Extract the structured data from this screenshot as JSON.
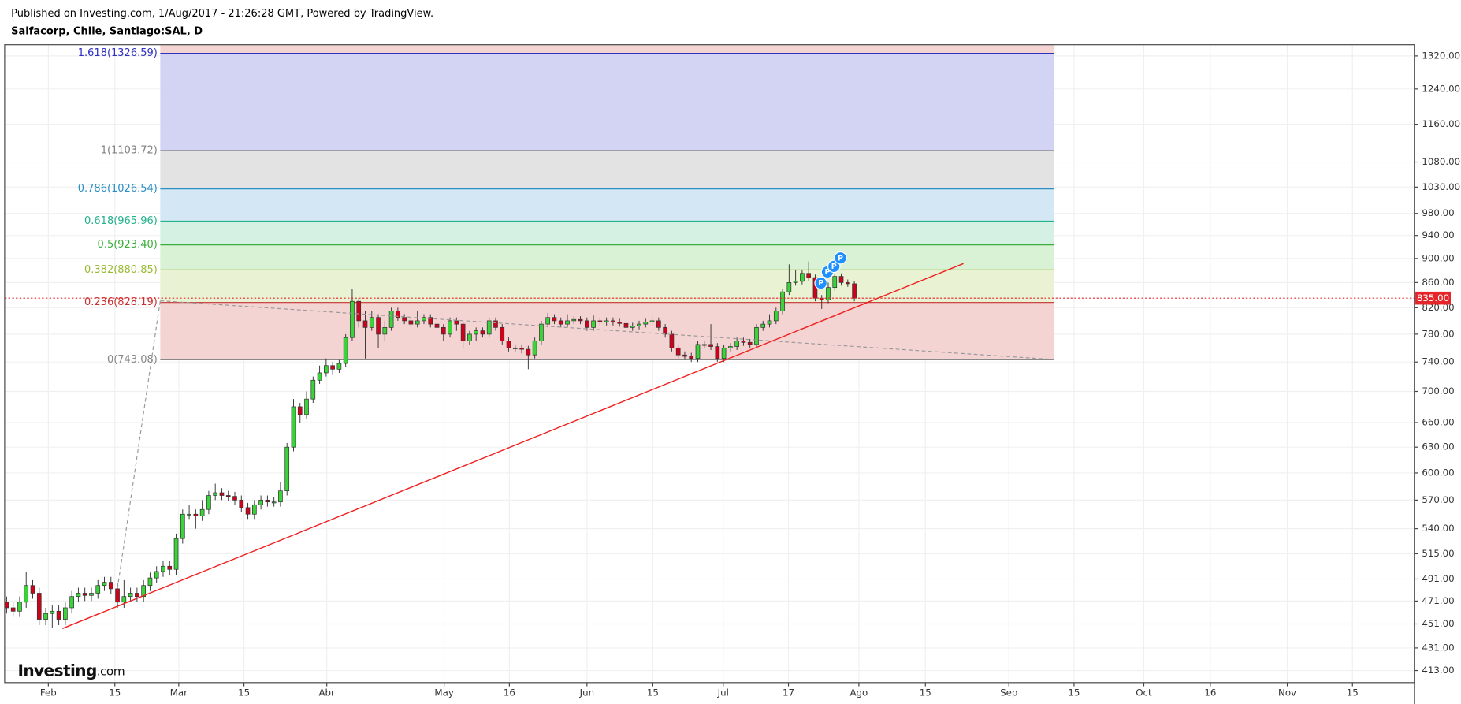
{
  "header": {
    "published": "Published on Investing.com, 1/Aug/2017 - 21:26:28 GMT, Powered by TradingView.",
    "symbol": "Salfacorp, Chile, Santiago:SAL, D"
  },
  "logo": {
    "name": "Investing",
    "suffix": ".com"
  },
  "chart_data": {
    "type": "candlestick",
    "log_scale": true,
    "grid": true,
    "up_color": "#3ad33a",
    "down_color": "#d0021b",
    "open": [
      470,
      465,
      462,
      470,
      485,
      478,
      455,
      460,
      462,
      455,
      465,
      475,
      478,
      476,
      478,
      485,
      488,
      482,
      470,
      475,
      478,
      475,
      485,
      492,
      498,
      503,
      500,
      530,
      555,
      555,
      553,
      560,
      575,
      578,
      575,
      574,
      570,
      562,
      555,
      565,
      570,
      568,
      568,
      580,
      630,
      680,
      670,
      690,
      715,
      725,
      735,
      730,
      738,
      775,
      830,
      800,
      790,
      805,
      780,
      790,
      815,
      805,
      800,
      795,
      800,
      805,
      795,
      790,
      780,
      800,
      795,
      770,
      780,
      785,
      780,
      800,
      790,
      770,
      760,
      760,
      758,
      750,
      770,
      795,
      805,
      800,
      795,
      800,
      802,
      800,
      790,
      800,
      798,
      800,
      798,
      796,
      790,
      792,
      795,
      798,
      800,
      790,
      780,
      760,
      750,
      748,
      745,
      765,
      765,
      762,
      745,
      760,
      762,
      770,
      768,
      765,
      790,
      795,
      800,
      815,
      845,
      860,
      862,
      875,
      868,
      835,
      832,
      852,
      870,
      860,
      858
    ],
    "high": [
      475,
      470,
      475,
      498,
      490,
      483,
      465,
      467,
      467,
      470,
      480,
      483,
      483,
      483,
      490,
      493,
      493,
      487,
      490,
      483,
      483,
      490,
      497,
      503,
      508,
      508,
      535,
      560,
      565,
      560,
      570,
      580,
      588,
      583,
      580,
      579,
      575,
      567,
      570,
      575,
      575,
      573,
      590,
      635,
      690,
      685,
      700,
      720,
      735,
      745,
      740,
      743,
      780,
      850,
      835,
      815,
      815,
      810,
      800,
      820,
      820,
      810,
      805,
      815,
      810,
      810,
      800,
      795,
      805,
      805,
      800,
      785,
      790,
      790,
      805,
      805,
      795,
      775,
      765,
      765,
      763,
      775,
      800,
      812,
      810,
      805,
      810,
      807,
      807,
      805,
      808,
      805,
      805,
      805,
      803,
      801,
      797,
      800,
      803,
      808,
      805,
      795,
      785,
      765,
      755,
      753,
      770,
      770,
      795,
      767,
      765,
      767,
      775,
      775,
      773,
      795,
      800,
      810,
      820,
      850,
      890,
      880,
      880,
      895,
      873,
      840,
      860,
      875,
      875,
      865,
      863
    ],
    "low": [
      460,
      457,
      457,
      465,
      473,
      450,
      450,
      448,
      450,
      450,
      460,
      470,
      471,
      471,
      473,
      480,
      477,
      465,
      465,
      470,
      470,
      470,
      480,
      487,
      493,
      495,
      495,
      525,
      550,
      540,
      548,
      555,
      570,
      570,
      569,
      565,
      557,
      550,
      550,
      560,
      563,
      563,
      563,
      575,
      625,
      660,
      665,
      685,
      710,
      720,
      722,
      725,
      733,
      770,
      790,
      745,
      785,
      760,
      770,
      785,
      800,
      795,
      790,
      790,
      795,
      790,
      770,
      770,
      775,
      785,
      760,
      765,
      770,
      775,
      775,
      785,
      765,
      755,
      755,
      752,
      730,
      745,
      765,
      790,
      795,
      790,
      790,
      795,
      795,
      785,
      785,
      793,
      793,
      793,
      791,
      785,
      785,
      787,
      790,
      793,
      785,
      775,
      755,
      745,
      743,
      740,
      740,
      760,
      757,
      740,
      740,
      755,
      757,
      763,
      760,
      760,
      785,
      790,
      795,
      810,
      840,
      855,
      857,
      863,
      830,
      818,
      827,
      847,
      855,
      853,
      830
    ],
    "close": [
      465,
      462,
      470,
      485,
      478,
      455,
      460,
      462,
      455,
      465,
      475,
      478,
      476,
      478,
      485,
      488,
      482,
      470,
      475,
      478,
      475,
      485,
      492,
      498,
      503,
      500,
      530,
      555,
      555,
      553,
      560,
      575,
      578,
      575,
      574,
      570,
      562,
      555,
      565,
      570,
      568,
      568,
      580,
      630,
      680,
      670,
      690,
      715,
      725,
      735,
      730,
      738,
      775,
      830,
      800,
      790,
      805,
      780,
      790,
      815,
      805,
      800,
      795,
      800,
      805,
      795,
      790,
      780,
      800,
      795,
      770,
      780,
      785,
      780,
      800,
      790,
      770,
      760,
      760,
      758,
      750,
      770,
      795,
      805,
      800,
      795,
      800,
      802,
      800,
      790,
      800,
      798,
      800,
      798,
      796,
      790,
      792,
      795,
      798,
      800,
      790,
      780,
      760,
      750,
      748,
      745,
      765,
      765,
      762,
      745,
      760,
      762,
      770,
      768,
      765,
      790,
      795,
      800,
      815,
      845,
      860,
      862,
      875,
      868,
      835,
      832,
      852,
      870,
      860,
      858,
      835
    ],
    "last_price": {
      "value": 835,
      "label": "835.00",
      "color": "#e5252a"
    },
    "event_markers": [
      "P",
      "P",
      "P",
      "P"
    ],
    "fib_levels": [
      {
        "label": "1.618(1326.59)",
        "value": 1326.59,
        "color": "#3030c0",
        "fill": "#d3d3f3"
      },
      {
        "label": "1(1103.72)",
        "value": 1103.72,
        "color": "#808080",
        "fill": "#e3e3e3"
      },
      {
        "label": "0.786(1026.54)",
        "value": 1026.54,
        "color": "#2c8fc4",
        "fill": "#d3e8f4"
      },
      {
        "label": "0.618(965.96)",
        "value": 965.96,
        "color": "#22b38a",
        "fill": "#d4f1e4"
      },
      {
        "label": "0.5(923.40)",
        "value": 923.4,
        "color": "#3cae3c",
        "fill": "#d9f1d5"
      },
      {
        "label": "0.382(880.85)",
        "value": 880.85,
        "color": "#98bb30",
        "fill": "#e9f2d3"
      },
      {
        "label": "0.236(828.19)",
        "value": 828.19,
        "color": "#c83030",
        "fill": "#f4d3d3"
      },
      {
        "label": "0(743.08)",
        "value": 743.08,
        "color": "#888888",
        "fill": "#f4d3d3"
      }
    ],
    "ylim": [
      403.7,
      1348.2
    ],
    "yticks": [
      {
        "value": 1320,
        "label": "1320.00"
      },
      {
        "value": 1240,
        "label": "1240.00"
      },
      {
        "value": 1160,
        "label": "1160.00"
      },
      {
        "value": 1080,
        "label": "1080.00"
      },
      {
        "value": 1030,
        "label": "1030.00"
      },
      {
        "value": 980,
        "label": "980.00"
      },
      {
        "value": 940,
        "label": "940.00"
      },
      {
        "value": 900,
        "label": "900.00"
      },
      {
        "value": 860,
        "label": "860.00"
      },
      {
        "value": 820,
        "label": "820.00"
      },
      {
        "value": 780,
        "label": "780.00"
      },
      {
        "value": 740,
        "label": "740.00"
      },
      {
        "value": 700,
        "label": "700.00"
      },
      {
        "value": 660,
        "label": "660.00"
      },
      {
        "value": 630,
        "label": "630.00"
      },
      {
        "value": 600,
        "label": "600.00"
      },
      {
        "value": 570,
        "label": "570.00"
      },
      {
        "value": 540,
        "label": "540.00"
      },
      {
        "value": 515,
        "label": "515.00"
      },
      {
        "value": 491,
        "label": "491.00"
      },
      {
        "value": 471,
        "label": "471.00"
      },
      {
        "value": 451,
        "label": "451.00"
      },
      {
        "value": 431,
        "label": "431.00"
      },
      {
        "value": 413,
        "label": "413.00"
      }
    ],
    "xlim": [
      -0.3,
      215.9
    ],
    "xticks": [
      {
        "value": 6.4,
        "label": "Feb"
      },
      {
        "value": 16.6,
        "label": "15"
      },
      {
        "value": 26.4,
        "label": "Mar"
      },
      {
        "value": 36.4,
        "label": "15"
      },
      {
        "value": 49.1,
        "label": "Abr"
      },
      {
        "value": 67.1,
        "label": "May"
      },
      {
        "value": 77.1,
        "label": "16"
      },
      {
        "value": 89,
        "label": "Jun"
      },
      {
        "value": 99.1,
        "label": "15"
      },
      {
        "value": 109.9,
        "label": "Jul"
      },
      {
        "value": 119.9,
        "label": "17"
      },
      {
        "value": 130.7,
        "label": "Ago"
      },
      {
        "value": 140.9,
        "label": "15"
      },
      {
        "value": 153.7,
        "label": "Sep"
      },
      {
        "value": 163.7,
        "label": "15"
      },
      {
        "value": 174.4,
        "label": "Oct"
      },
      {
        "value": 184.6,
        "label": "16"
      },
      {
        "value": 196.4,
        "label": "Nov"
      },
      {
        "value": 206.4,
        "label": "15"
      }
    ]
  }
}
